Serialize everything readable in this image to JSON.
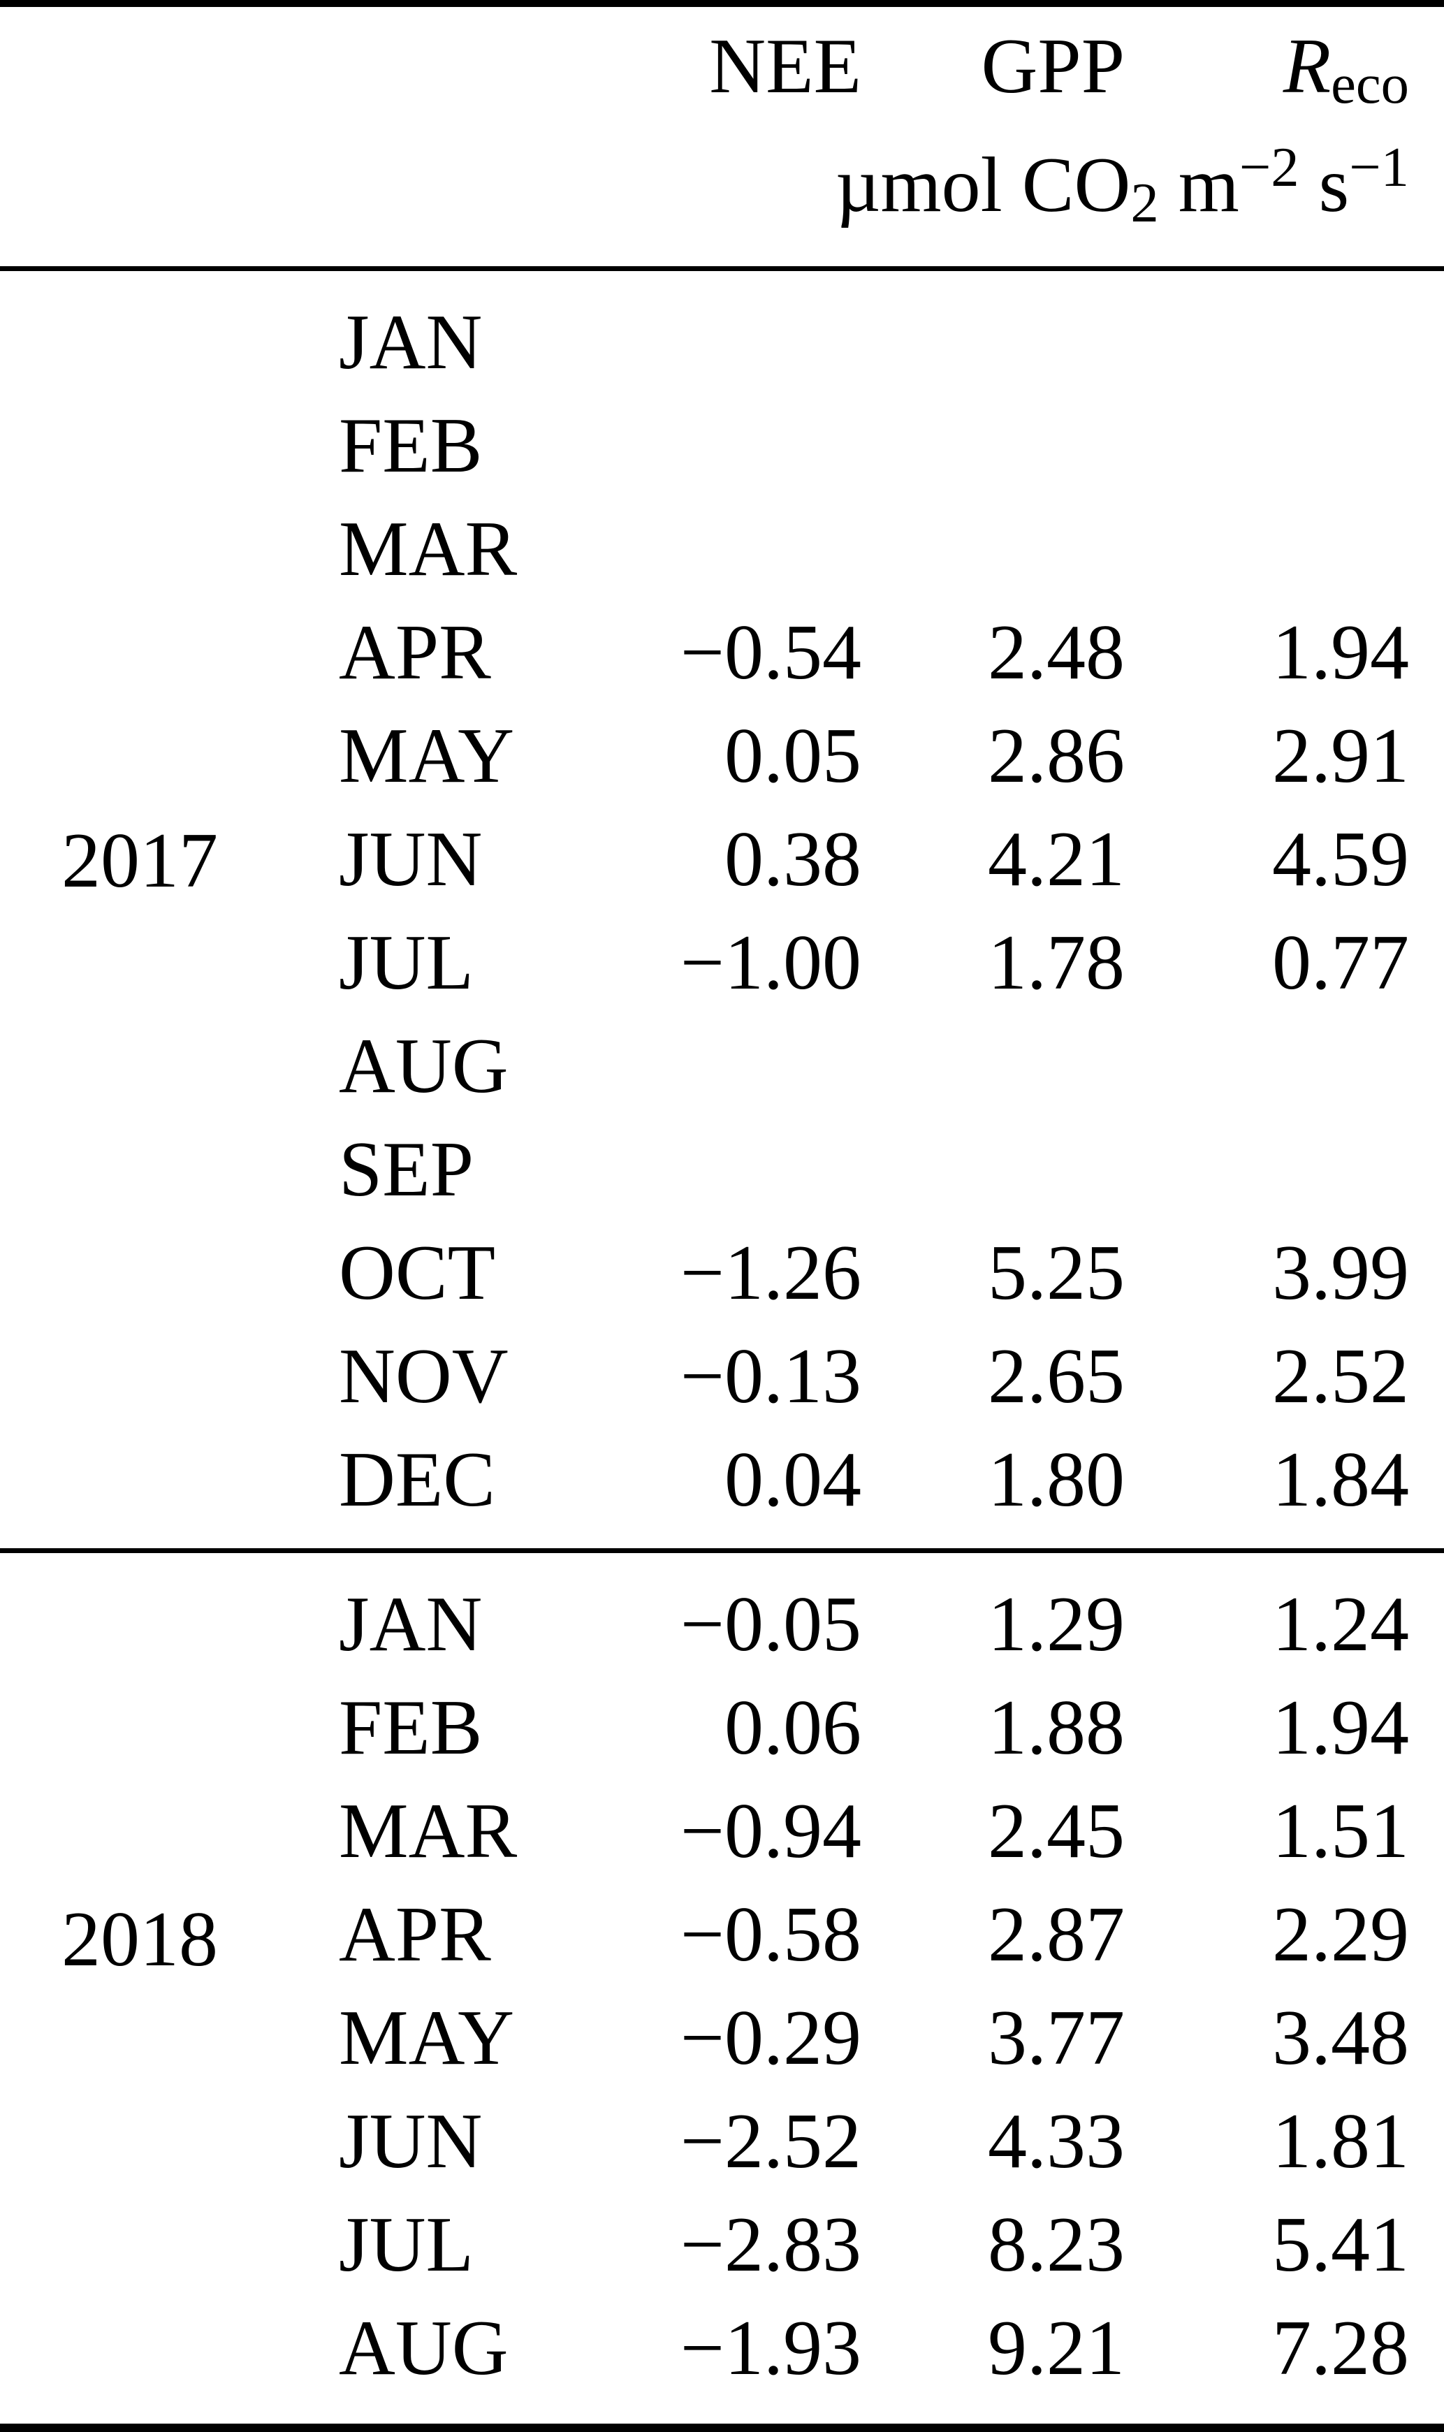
{
  "table": {
    "header": {
      "nee": "NEE",
      "gpp": "GPP",
      "reco_base": "R",
      "reco_sub": "eco",
      "units": {
        "p1": "µmol CO",
        "sub1": "2",
        "p2": " m",
        "sup1": "−2",
        "p3": " s",
        "sup2": "−1"
      }
    },
    "colors": {
      "text": "#000000",
      "background": "#ffffff",
      "rule": "#000000"
    },
    "sections": [
      {
        "year": "2017",
        "rows": [
          {
            "month": "JAN",
            "nee": "",
            "gpp": "",
            "reco": ""
          },
          {
            "month": "FEB",
            "nee": "",
            "gpp": "",
            "reco": ""
          },
          {
            "month": "MAR",
            "nee": "",
            "gpp": "",
            "reco": ""
          },
          {
            "month": "APR",
            "nee": "−0.54",
            "gpp": "2.48",
            "reco": "1.94"
          },
          {
            "month": "MAY",
            "nee": "0.05",
            "gpp": "2.86",
            "reco": "2.91"
          },
          {
            "month": "JUN",
            "nee": "0.38",
            "gpp": "4.21",
            "reco": "4.59"
          },
          {
            "month": "JUL",
            "nee": "−1.00",
            "gpp": "1.78",
            "reco": "0.77"
          },
          {
            "month": "AUG",
            "nee": "",
            "gpp": "",
            "reco": ""
          },
          {
            "month": "SEP",
            "nee": "",
            "gpp": "",
            "reco": ""
          },
          {
            "month": "OCT",
            "nee": "−1.26",
            "gpp": "5.25",
            "reco": "3.99"
          },
          {
            "month": "NOV",
            "nee": "−0.13",
            "gpp": "2.65",
            "reco": "2.52"
          },
          {
            "month": "DEC",
            "nee": "0.04",
            "gpp": "1.80",
            "reco": "1.84"
          }
        ]
      },
      {
        "year": "2018",
        "rows": [
          {
            "month": "JAN",
            "nee": "−0.05",
            "gpp": "1.29",
            "reco": "1.24"
          },
          {
            "month": "FEB",
            "nee": "0.06",
            "gpp": "1.88",
            "reco": "1.94"
          },
          {
            "month": "MAR",
            "nee": "−0.94",
            "gpp": "2.45",
            "reco": "1.51"
          },
          {
            "month": "APR",
            "nee": "−0.58",
            "gpp": "2.87",
            "reco": "2.29"
          },
          {
            "month": "MAY",
            "nee": "−0.29",
            "gpp": "3.77",
            "reco": "3.48"
          },
          {
            "month": "JUN",
            "nee": "−2.52",
            "gpp": "4.33",
            "reco": "1.81"
          },
          {
            "month": "JUL",
            "nee": "−2.83",
            "gpp": "8.23",
            "reco": "5.41"
          },
          {
            "month": "AUG",
            "nee": "−1.93",
            "gpp": "9.21",
            "reco": "7.28"
          }
        ]
      }
    ]
  }
}
